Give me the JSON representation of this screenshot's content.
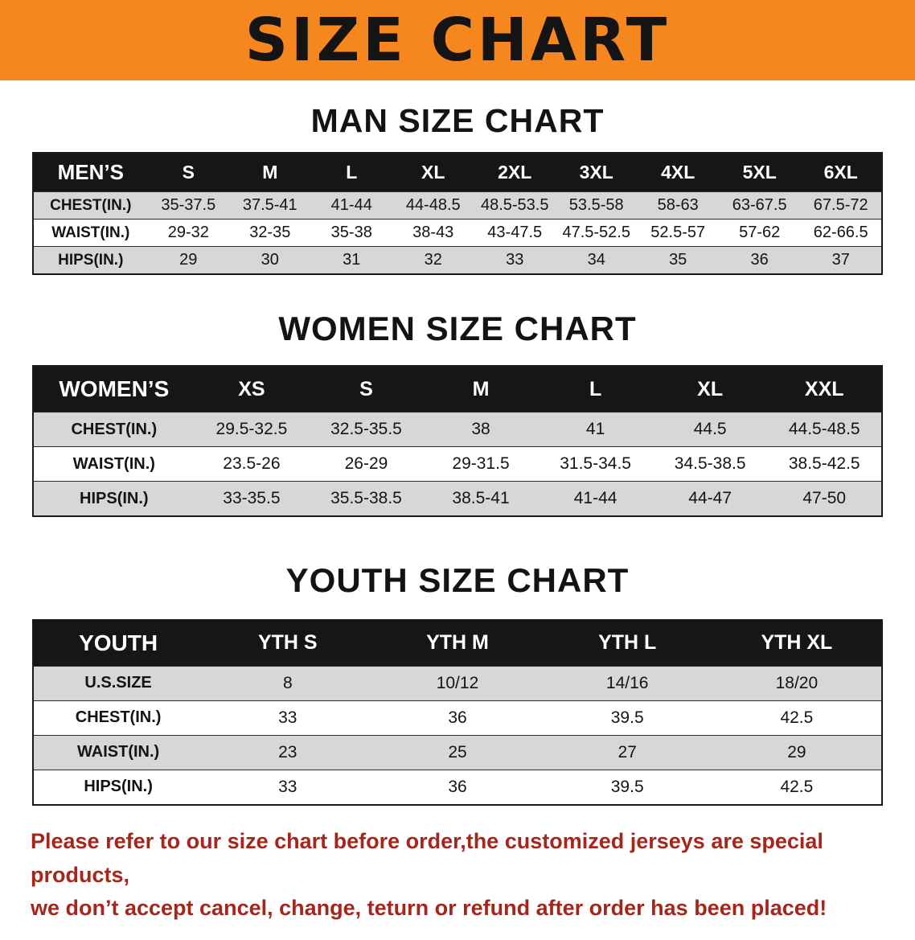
{
  "banner": {
    "title": "SIZE CHART"
  },
  "colors": {
    "banner_bg": "#f6861e",
    "banner_text": "#141414",
    "table_header_bg": "#161616",
    "table_header_text": "#ffffff",
    "row_alt_bg": "#d7d7d7",
    "disclaimer_text": "#a6261b"
  },
  "sections": [
    {
      "id": "man",
      "heading": "MAN SIZE CHART",
      "table": {
        "header": [
          "MEN’S",
          "S",
          "M",
          "L",
          "XL",
          "2XL",
          "3XL",
          "4XL",
          "5XL",
          "6XL"
        ],
        "rows": [
          [
            "CHEST(IN.)",
            "35-37.5",
            "37.5-41",
            "41-44",
            "44-48.5",
            "48.5-53.5",
            "53.5-58",
            "58-63",
            "63-67.5",
            "67.5-72"
          ],
          [
            "WAIST(IN.)",
            "29-32",
            "32-35",
            "35-38",
            "38-43",
            "43-47.5",
            "47.5-52.5",
            "52.5-57",
            "57-62",
            "62-66.5"
          ],
          [
            "HIPS(IN.)",
            "29",
            "30",
            "31",
            "32",
            "33",
            "34",
            "35",
            "36",
            "37"
          ]
        ]
      }
    },
    {
      "id": "women",
      "heading": "WOMEN SIZE CHART",
      "table": {
        "header": [
          "WOMEN’S",
          "XS",
          "S",
          "M",
          "L",
          "XL",
          "XXL"
        ],
        "rows": [
          [
            "CHEST(IN.)",
            "29.5-32.5",
            "32.5-35.5",
            "38",
            "41",
            "44.5",
            "44.5-48.5"
          ],
          [
            "WAIST(IN.)",
            "23.5-26",
            "26-29",
            "29-31.5",
            "31.5-34.5",
            "34.5-38.5",
            "38.5-42.5"
          ],
          [
            "HIPS(IN.)",
            "33-35.5",
            "35.5-38.5",
            "38.5-41",
            "41-44",
            "44-47",
            "47-50"
          ]
        ]
      }
    },
    {
      "id": "youth",
      "heading": "YOUTH SIZE CHART",
      "table": {
        "header": [
          "YOUTH",
          "YTH S",
          "YTH M",
          "YTH L",
          "YTH XL"
        ],
        "rows": [
          [
            "U.S.SIZE",
            "8",
            "10/12",
            "14/16",
            "18/20"
          ],
          [
            "CHEST(IN.)",
            "33",
            "36",
            "39.5",
            "42.5"
          ],
          [
            "WAIST(IN.)",
            "23",
            "25",
            "27",
            "29"
          ],
          [
            "HIPS(IN.)",
            "33",
            "36",
            "39.5",
            "42.5"
          ]
        ]
      }
    }
  ],
  "disclaimer": {
    "line1": "Please refer to our size chart before order,the customized jerseys are special products,",
    "line2": "we don’t accept cancel, change, teturn or refund after order has been placed!"
  }
}
